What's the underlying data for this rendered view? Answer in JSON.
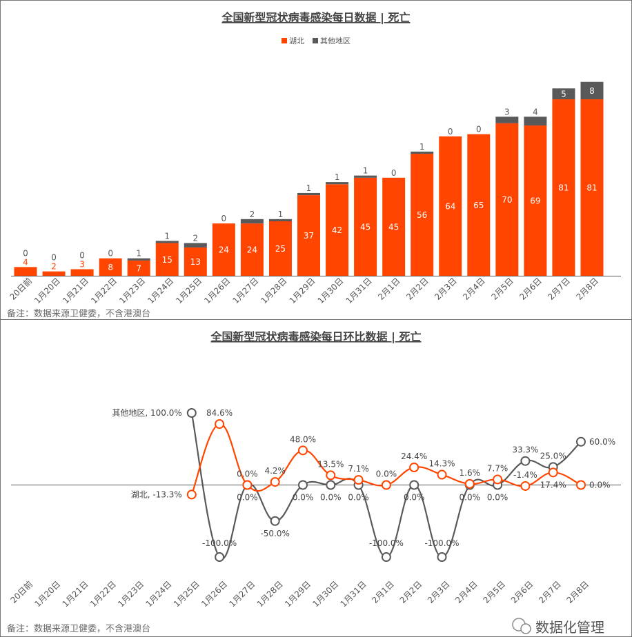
{
  "chart_data": [
    {
      "type": "bar",
      "stacked": true,
      "title": "全国新型冠状病毒感染每日数据 | 死亡",
      "legend_position": "top",
      "note": "备注：数据来源卫健委，不含港澳台",
      "categories": [
        "20日前",
        "1月20日",
        "1月21日",
        "1月22日",
        "1月23日",
        "1月24日",
        "1月25日",
        "1月26日",
        "1月27日",
        "1月28日",
        "1月29日",
        "1月30日",
        "1月31日",
        "2月1日",
        "2月2日",
        "2月3日",
        "2月4日",
        "2月5日",
        "2月6日",
        "2月7日",
        "2月8日"
      ],
      "series": [
        {
          "name": "湖北",
          "color": "#FF4500",
          "values": [
            4,
            2,
            3,
            8,
            7,
            15,
            13,
            24,
            24,
            25,
            37,
            42,
            45,
            45,
            56,
            64,
            65,
            70,
            69,
            81,
            81
          ]
        },
        {
          "name": "其他地区",
          "color": "#595959",
          "values": [
            0,
            0,
            0,
            0,
            1,
            1,
            2,
            0,
            2,
            1,
            1,
            1,
            1,
            0,
            1,
            0,
            0,
            3,
            4,
            5,
            8
          ]
        }
      ],
      "grid": false
    },
    {
      "type": "line",
      "smooth": true,
      "title": "全国新型冠状病毒感染每日环比数据 | 死亡",
      "note": "备注：数据来源卫健委，不含港澳台",
      "unit": "%",
      "categories": [
        "20日前",
        "1月20日",
        "1月21日",
        "1月22日",
        "1月23日",
        "1月24日",
        "1月25日",
        "1月26日",
        "1月27日",
        "1月28日",
        "1月29日",
        "1月30日",
        "1月31日",
        "2月1日",
        "2月2日",
        "2月3日",
        "2月4日",
        "2月5日",
        "2月6日",
        "2月7日",
        "2月8日"
      ],
      "series": [
        {
          "name": "湖北",
          "color": "#FF4500",
          "values": [
            null,
            null,
            null,
            null,
            null,
            null,
            -13.3,
            84.6,
            0.0,
            4.2,
            48.0,
            13.5,
            7.1,
            0.0,
            24.4,
            14.3,
            1.6,
            7.7,
            -1.4,
            17.4,
            0.0
          ]
        },
        {
          "name": "其他地区",
          "color": "#595959",
          "values": [
            null,
            null,
            null,
            null,
            null,
            null,
            100.0,
            -100.0,
            0.0,
            -50.0,
            0.0,
            0.0,
            0.0,
            -100.0,
            0.0,
            -100.0,
            0.0,
            0.0,
            33.3,
            25.0,
            60.0
          ]
        }
      ],
      "grid": false
    }
  ],
  "watermark": "数据化管理"
}
